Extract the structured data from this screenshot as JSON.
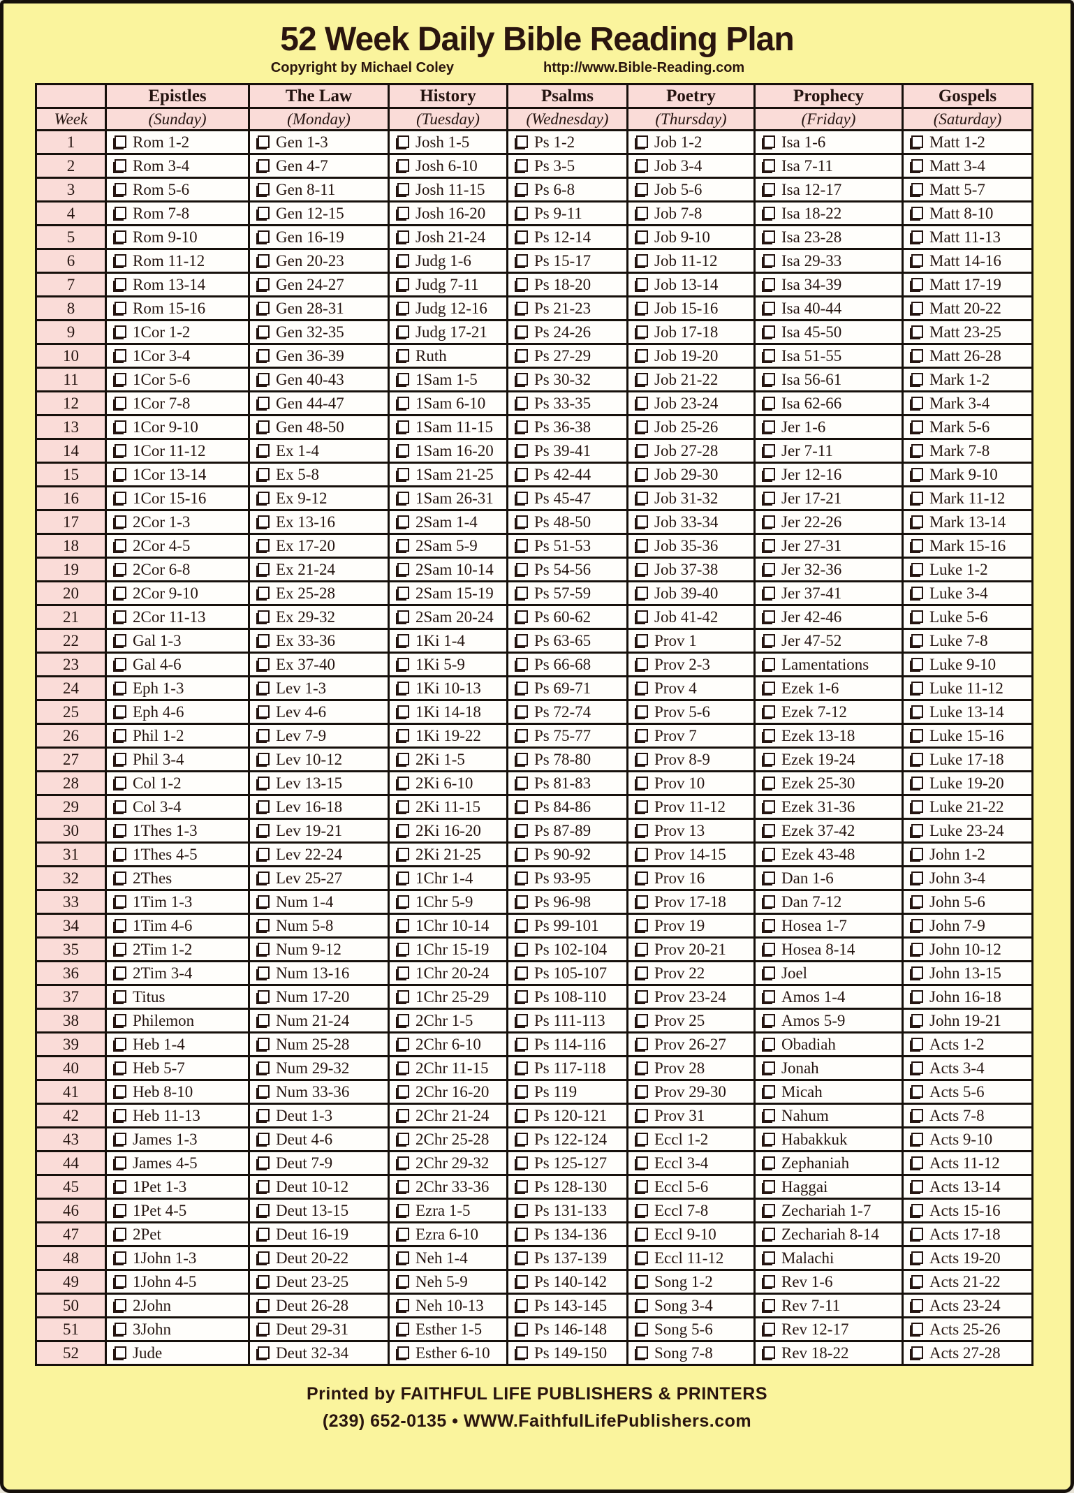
{
  "title": "52 Week Daily Bible Reading Plan",
  "subtitle": {
    "copyright": "Copyright by Michael Coley",
    "url": "http://www.Bible-Reading.com"
  },
  "colors": {
    "page_bg": "#faf49d",
    "panel_pink": "#fadcd8",
    "cell_bg": "#fffefb",
    "ink": "#241410",
    "line": "#16100b",
    "frame": "#16100b"
  },
  "table": {
    "week_label": "Week",
    "checkbox_icon": "checkbox",
    "columns": [
      {
        "category": "Epistles",
        "day": "(Sunday)"
      },
      {
        "category": "The Law",
        "day": "(Monday)"
      },
      {
        "category": "History",
        "day": "(Tuesday)"
      },
      {
        "category": "Psalms",
        "day": "(Wednesday)"
      },
      {
        "category": "Poetry",
        "day": "(Thursday)"
      },
      {
        "category": "Prophecy",
        "day": "(Friday)"
      },
      {
        "category": "Gospels",
        "day": "(Saturday)"
      }
    ],
    "rows": [
      {
        "week": 1,
        "readings": [
          "Rom 1-2",
          "Gen 1-3",
          "Josh 1-5",
          "Ps 1-2",
          "Job 1-2",
          "Isa 1-6",
          "Matt 1-2"
        ]
      },
      {
        "week": 2,
        "readings": [
          "Rom 3-4",
          "Gen 4-7",
          "Josh 6-10",
          "Ps 3-5",
          "Job 3-4",
          "Isa 7-11",
          "Matt 3-4"
        ]
      },
      {
        "week": 3,
        "readings": [
          "Rom 5-6",
          "Gen 8-11",
          "Josh 11-15",
          "Ps 6-8",
          "Job 5-6",
          "Isa 12-17",
          "Matt 5-7"
        ]
      },
      {
        "week": 4,
        "readings": [
          "Rom 7-8",
          "Gen 12-15",
          "Josh 16-20",
          "Ps 9-11",
          "Job 7-8",
          "Isa 18-22",
          "Matt 8-10"
        ]
      },
      {
        "week": 5,
        "readings": [
          "Rom 9-10",
          "Gen 16-19",
          "Josh 21-24",
          "Ps 12-14",
          "Job 9-10",
          "Isa 23-28",
          "Matt 11-13"
        ]
      },
      {
        "week": 6,
        "readings": [
          "Rom 11-12",
          "Gen 20-23",
          "Judg 1-6",
          "Ps 15-17",
          "Job 11-12",
          "Isa 29-33",
          "Matt 14-16"
        ]
      },
      {
        "week": 7,
        "readings": [
          "Rom 13-14",
          "Gen 24-27",
          "Judg 7-11",
          "Ps 18-20",
          "Job 13-14",
          "Isa 34-39",
          "Matt 17-19"
        ]
      },
      {
        "week": 8,
        "readings": [
          "Rom 15-16",
          "Gen 28-31",
          "Judg 12-16",
          "Ps 21-23",
          "Job 15-16",
          "Isa 40-44",
          "Matt 20-22"
        ]
      },
      {
        "week": 9,
        "readings": [
          "1Cor 1-2",
          "Gen 32-35",
          "Judg 17-21",
          "Ps 24-26",
          "Job 17-18",
          "Isa 45-50",
          "Matt 23-25"
        ]
      },
      {
        "week": 10,
        "readings": [
          "1Cor 3-4",
          "Gen 36-39",
          "Ruth",
          "Ps 27-29",
          "Job 19-20",
          "Isa 51-55",
          "Matt 26-28"
        ]
      },
      {
        "week": 11,
        "readings": [
          "1Cor 5-6",
          "Gen 40-43",
          "1Sam 1-5",
          "Ps 30-32",
          "Job 21-22",
          "Isa 56-61",
          "Mark 1-2"
        ]
      },
      {
        "week": 12,
        "readings": [
          "1Cor 7-8",
          "Gen 44-47",
          "1Sam 6-10",
          "Ps 33-35",
          "Job 23-24",
          "Isa 62-66",
          "Mark 3-4"
        ]
      },
      {
        "week": 13,
        "readings": [
          "1Cor 9-10",
          "Gen 48-50",
          "1Sam 11-15",
          "Ps 36-38",
          "Job 25-26",
          "Jer 1-6",
          "Mark 5-6"
        ]
      },
      {
        "week": 14,
        "readings": [
          "1Cor 11-12",
          "Ex 1-4",
          "1Sam 16-20",
          "Ps 39-41",
          "Job 27-28",
          "Jer 7-11",
          "Mark 7-8"
        ]
      },
      {
        "week": 15,
        "readings": [
          "1Cor 13-14",
          "Ex 5-8",
          "1Sam 21-25",
          "Ps 42-44",
          "Job 29-30",
          "Jer 12-16",
          "Mark 9-10"
        ]
      },
      {
        "week": 16,
        "readings": [
          "1Cor 15-16",
          "Ex 9-12",
          "1Sam 26-31",
          "Ps 45-47",
          "Job 31-32",
          "Jer 17-21",
          "Mark 11-12"
        ]
      },
      {
        "week": 17,
        "readings": [
          "2Cor 1-3",
          "Ex 13-16",
          "2Sam 1-4",
          "Ps 48-50",
          "Job 33-34",
          "Jer 22-26",
          "Mark 13-14"
        ]
      },
      {
        "week": 18,
        "readings": [
          "2Cor 4-5",
          "Ex 17-20",
          "2Sam 5-9",
          "Ps 51-53",
          "Job 35-36",
          "Jer 27-31",
          "Mark 15-16"
        ]
      },
      {
        "week": 19,
        "readings": [
          "2Cor 6-8",
          "Ex 21-24",
          "2Sam 10-14",
          "Ps 54-56",
          "Job 37-38",
          "Jer 32-36",
          "Luke 1-2"
        ]
      },
      {
        "week": 20,
        "readings": [
          "2Cor 9-10",
          "Ex 25-28",
          "2Sam 15-19",
          "Ps 57-59",
          "Job 39-40",
          "Jer 37-41",
          "Luke 3-4"
        ]
      },
      {
        "week": 21,
        "readings": [
          "2Cor 11-13",
          "Ex 29-32",
          "2Sam 20-24",
          "Ps 60-62",
          "Job 41-42",
          "Jer 42-46",
          "Luke 5-6"
        ]
      },
      {
        "week": 22,
        "readings": [
          "Gal 1-3",
          "Ex 33-36",
          "1Ki 1-4",
          "Ps 63-65",
          "Prov 1",
          "Jer 47-52",
          "Luke 7-8"
        ]
      },
      {
        "week": 23,
        "readings": [
          "Gal 4-6",
          "Ex 37-40",
          "1Ki 5-9",
          "Ps 66-68",
          "Prov 2-3",
          "Lamentations",
          "Luke 9-10"
        ]
      },
      {
        "week": 24,
        "readings": [
          "Eph 1-3",
          "Lev 1-3",
          "1Ki 10-13",
          "Ps 69-71",
          "Prov 4",
          "Ezek 1-6",
          "Luke 11-12"
        ]
      },
      {
        "week": 25,
        "readings": [
          "Eph 4-6",
          "Lev 4-6",
          "1Ki 14-18",
          "Ps 72-74",
          "Prov 5-6",
          "Ezek 7-12",
          "Luke 13-14"
        ]
      },
      {
        "week": 26,
        "readings": [
          "Phil 1-2",
          "Lev 7-9",
          "1Ki 19-22",
          "Ps 75-77",
          "Prov 7",
          "Ezek 13-18",
          "Luke 15-16"
        ]
      },
      {
        "week": 27,
        "readings": [
          "Phil 3-4",
          "Lev 10-12",
          "2Ki 1-5",
          "Ps 78-80",
          "Prov 8-9",
          "Ezek 19-24",
          "Luke 17-18"
        ]
      },
      {
        "week": 28,
        "readings": [
          "Col 1-2",
          "Lev 13-15",
          "2Ki 6-10",
          "Ps 81-83",
          "Prov 10",
          "Ezek 25-30",
          "Luke 19-20"
        ]
      },
      {
        "week": 29,
        "readings": [
          "Col 3-4",
          "Lev 16-18",
          "2Ki 11-15",
          "Ps 84-86",
          "Prov 11-12",
          "Ezek 31-36",
          "Luke 21-22"
        ]
      },
      {
        "week": 30,
        "readings": [
          "1Thes 1-3",
          "Lev 19-21",
          "2Ki 16-20",
          "Ps 87-89",
          "Prov 13",
          "Ezek 37-42",
          "Luke 23-24"
        ]
      },
      {
        "week": 31,
        "readings": [
          "1Thes 4-5",
          "Lev 22-24",
          "2Ki 21-25",
          "Ps 90-92",
          "Prov 14-15",
          "Ezek 43-48",
          "John 1-2"
        ]
      },
      {
        "week": 32,
        "readings": [
          "2Thes",
          "Lev 25-27",
          "1Chr 1-4",
          "Ps 93-95",
          "Prov 16",
          "Dan 1-6",
          "John 3-4"
        ]
      },
      {
        "week": 33,
        "readings": [
          "1Tim 1-3",
          "Num 1-4",
          "1Chr 5-9",
          "Ps 96-98",
          "Prov 17-18",
          "Dan 7-12",
          "John 5-6"
        ]
      },
      {
        "week": 34,
        "readings": [
          "1Tim 4-6",
          "Num 5-8",
          "1Chr 10-14",
          "Ps 99-101",
          "Prov 19",
          "Hosea 1-7",
          "John 7-9"
        ]
      },
      {
        "week": 35,
        "readings": [
          "2Tim 1-2",
          "Num 9-12",
          "1Chr 15-19",
          "Ps 102-104",
          "Prov 20-21",
          "Hosea 8-14",
          "John 10-12"
        ]
      },
      {
        "week": 36,
        "readings": [
          "2Tim 3-4",
          "Num 13-16",
          "1Chr 20-24",
          "Ps 105-107",
          "Prov 22",
          "Joel",
          "John 13-15"
        ]
      },
      {
        "week": 37,
        "readings": [
          "Titus",
          "Num 17-20",
          "1Chr 25-29",
          "Ps 108-110",
          "Prov 23-24",
          "Amos 1-4",
          "John 16-18"
        ]
      },
      {
        "week": 38,
        "readings": [
          "Philemon",
          "Num 21-24",
          "2Chr 1-5",
          "Ps 111-113",
          "Prov 25",
          "Amos 5-9",
          "John 19-21"
        ]
      },
      {
        "week": 39,
        "readings": [
          "Heb 1-4",
          "Num 25-28",
          "2Chr 6-10",
          "Ps 114-116",
          "Prov 26-27",
          "Obadiah",
          "Acts 1-2"
        ]
      },
      {
        "week": 40,
        "readings": [
          "Heb 5-7",
          "Num 29-32",
          "2Chr 11-15",
          "Ps 117-118",
          "Prov 28",
          "Jonah",
          "Acts 3-4"
        ]
      },
      {
        "week": 41,
        "readings": [
          "Heb 8-10",
          "Num 33-36",
          "2Chr 16-20",
          "Ps 119",
          "Prov 29-30",
          "Micah",
          "Acts 5-6"
        ]
      },
      {
        "week": 42,
        "readings": [
          "Heb 11-13",
          "Deut 1-3",
          "2Chr 21-24",
          "Ps 120-121",
          "Prov 31",
          "Nahum",
          "Acts 7-8"
        ]
      },
      {
        "week": 43,
        "readings": [
          "James 1-3",
          "Deut 4-6",
          "2Chr 25-28",
          "Ps 122-124",
          "Eccl 1-2",
          "Habakkuk",
          "Acts 9-10"
        ]
      },
      {
        "week": 44,
        "readings": [
          "James 4-5",
          "Deut 7-9",
          "2Chr 29-32",
          "Ps 125-127",
          "Eccl 3-4",
          "Zephaniah",
          "Acts 11-12"
        ]
      },
      {
        "week": 45,
        "readings": [
          "1Pet 1-3",
          "Deut 10-12",
          "2Chr 33-36",
          "Ps 128-130",
          "Eccl 5-6",
          "Haggai",
          "Acts 13-14"
        ]
      },
      {
        "week": 46,
        "readings": [
          "1Pet 4-5",
          "Deut 13-15",
          "Ezra 1-5",
          "Ps 131-133",
          "Eccl 7-8",
          "Zechariah 1-7",
          "Acts 15-16"
        ]
      },
      {
        "week": 47,
        "readings": [
          "2Pet",
          "Deut 16-19",
          "Ezra 6-10",
          "Ps 134-136",
          "Eccl 9-10",
          "Zechariah 8-14",
          "Acts 17-18"
        ]
      },
      {
        "week": 48,
        "readings": [
          "1John 1-3",
          "Deut 20-22",
          "Neh 1-4",
          "Ps 137-139",
          "Eccl 11-12",
          "Malachi",
          "Acts 19-20"
        ]
      },
      {
        "week": 49,
        "readings": [
          "1John 4-5",
          "Deut 23-25",
          "Neh 5-9",
          "Ps 140-142",
          "Song 1-2",
          "Rev 1-6",
          "Acts 21-22"
        ]
      },
      {
        "week": 50,
        "readings": [
          "2John",
          "Deut 26-28",
          "Neh 10-13",
          "Ps 143-145",
          "Song 3-4",
          "Rev 7-11",
          "Acts 23-24"
        ]
      },
      {
        "week": 51,
        "readings": [
          "3John",
          "Deut 29-31",
          "Esther 1-5",
          "Ps 146-148",
          "Song 5-6",
          "Rev 12-17",
          "Acts 25-26"
        ]
      },
      {
        "week": 52,
        "readings": [
          "Jude",
          "Deut 32-34",
          "Esther 6-10",
          "Ps 149-150",
          "Song 7-8",
          "Rev 18-22",
          "Acts 27-28"
        ]
      }
    ]
  },
  "footer": {
    "line1": "Printed by FAITHFUL LIFE PUBLISHERS & PRINTERS",
    "line2": "(239) 652-0135 • WWW.FaithfulLifePublishers.com"
  }
}
